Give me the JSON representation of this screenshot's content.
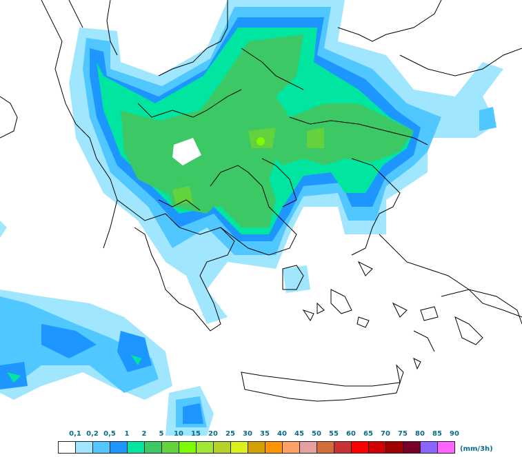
{
  "map": {
    "region": "Greece and surrounding Balkans / Aegean",
    "variable": "precipitation"
  },
  "legend": {
    "unit_label": "(mm/3h)",
    "thresholds": [
      "0,1",
      "0,2",
      "0,5",
      "1",
      "2",
      "5",
      "10",
      "15",
      "20",
      "25",
      "30",
      "35",
      "40",
      "45",
      "50",
      "55",
      "60",
      "65",
      "70",
      "75",
      "80",
      "85",
      "90"
    ],
    "colors": [
      "#ffffff",
      "#a0e6ff",
      "#50c8ff",
      "#1e96ff",
      "#00e6a0",
      "#3cc864",
      "#64d23c",
      "#7cfc00",
      "#a0e632",
      "#b4d228",
      "#dcf01e",
      "#d2a000",
      "#ff9600",
      "#ffa064",
      "#e6a0a0",
      "#d26e3c",
      "#c83232",
      "#ff0000",
      "#d20000",
      "#a00000",
      "#780028",
      "#8c64ff",
      "#ff64ff"
    ]
  }
}
